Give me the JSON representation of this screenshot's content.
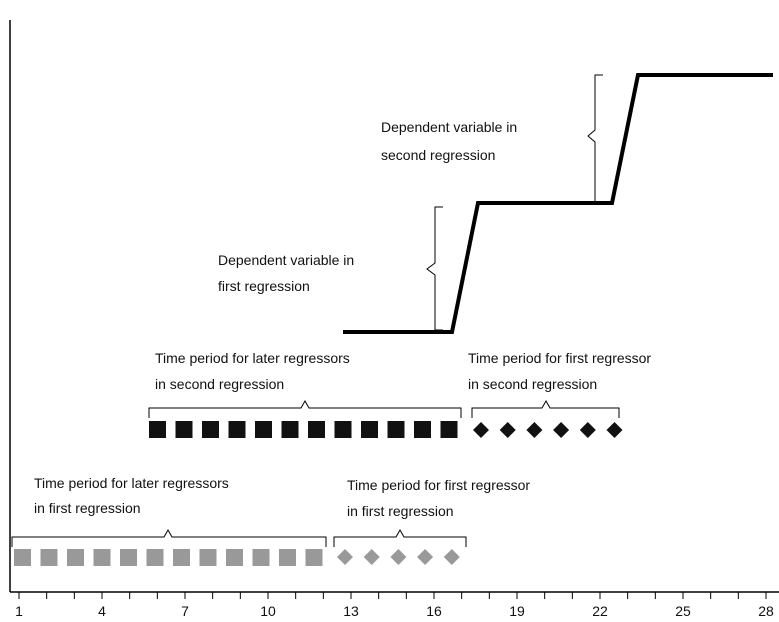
{
  "annotations": {
    "second_dependent": [
      "Dependent variable in",
      "second regression"
    ],
    "first_dependent": [
      "Dependent variable in",
      "first regression"
    ],
    "later_second": [
      "Time period for later  regressors",
      "in second regression"
    ],
    "first_second": [
      "Time period for first regressor",
      "in second regression"
    ],
    "later_first": [
      "Time period for later  regressors",
      "in first regression"
    ],
    "first_first": [
      "Time period for first regressor",
      "in first regression"
    ]
  },
  "x_axis": {
    "tick_labels": [
      "1",
      "4",
      "7",
      "10",
      "13",
      "16",
      "19",
      "22",
      "25",
      "28"
    ]
  }
}
